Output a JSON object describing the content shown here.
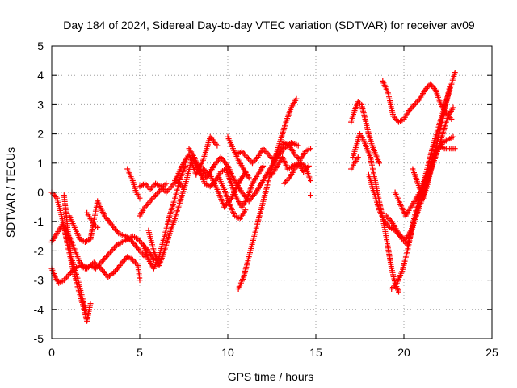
{
  "chart_data": {
    "type": "scatter",
    "title": "Day 184 of 2024, Sidereal Day-to-day VTEC variation (SDTVAR) for receiver av09",
    "xlabel": "GPS time / hours",
    "ylabel": "SDTVAR / TECUs",
    "xlim": [
      0,
      25
    ],
    "ylim": [
      -5,
      5
    ],
    "x_ticks": [
      "0",
      "5",
      "10",
      "15",
      "20",
      "25"
    ],
    "y_ticks": [
      "-5",
      "-4",
      "-3",
      "-2",
      "-1",
      "0",
      "1",
      "2",
      "3",
      "4",
      "5"
    ],
    "grid": true,
    "marker": "+",
    "color": "#ff0000",
    "tracks": [
      {
        "x": [
          0.0,
          0.3,
          0.6,
          0.9,
          1.2,
          1.5,
          1.8,
          2.0,
          2.2
        ],
        "y": [
          0.0,
          -0.2,
          -0.9,
          -1.8,
          -2.6,
          -3.3,
          -3.9,
          -4.4,
          -3.8
        ]
      },
      {
        "x": [
          0.7,
          0.8,
          0.9,
          1.0,
          1.1,
          1.3,
          1.5,
          1.7,
          1.9
        ],
        "y": [
          -0.1,
          -0.6,
          -1.2,
          -1.7,
          -2.2,
          -2.6,
          -3.0,
          -3.5,
          -4.0
        ]
      },
      {
        "x": [
          0.0,
          0.3,
          0.6,
          0.9,
          1.2,
          1.6,
          2.0,
          2.4,
          2.8,
          3.2,
          3.6,
          4.0,
          4.3,
          4.6,
          4.9,
          5.0
        ],
        "y": [
          -1.7,
          -1.4,
          -1.1,
          -1.4,
          -1.8,
          -2.4,
          -2.6,
          -2.4,
          -2.6,
          -2.9,
          -2.7,
          -2.4,
          -2.2,
          -2.3,
          -2.5,
          -3.0
        ]
      },
      {
        "x": [
          0.0,
          0.2,
          0.4,
          0.7,
          1.0,
          1.3,
          1.6,
          1.9,
          2.2,
          2.5,
          2.8,
          3.1,
          3.4,
          3.7,
          4.0,
          4.3,
          4.6,
          4.9,
          5.2,
          5.5,
          5.8
        ],
        "y": [
          -2.6,
          -2.9,
          -3.1,
          -3.0,
          -2.8,
          -2.6,
          -2.5,
          -2.6,
          -2.5,
          -2.6,
          -2.4,
          -2.2,
          -2.0,
          -1.8,
          -1.7,
          -1.6,
          -1.5,
          -1.6,
          -1.8,
          -2.0,
          -2.3
        ]
      },
      {
        "x": [
          1.0,
          1.3,
          1.6,
          1.9,
          2.2,
          2.6,
          3.0,
          3.4,
          3.8,
          4.2,
          4.6,
          5.0,
          5.3
        ],
        "y": [
          -0.8,
          -1.2,
          -1.6,
          -1.7,
          -1.6,
          -0.3,
          -0.8,
          -1.1,
          -1.4,
          -1.5,
          -1.7,
          -2.0,
          -2.2
        ]
      },
      {
        "x": [
          2.0,
          2.2,
          2.4,
          2.6
        ],
        "y": [
          -0.7,
          -0.9,
          -1.1,
          -1.2
        ]
      },
      {
        "x": [
          4.3,
          4.6,
          4.8,
          5.0
        ],
        "y": [
          0.8,
          0.4,
          0.0,
          -0.2
        ]
      },
      {
        "x": [
          5.0,
          5.3,
          5.6,
          5.9,
          6.2,
          6.5
        ],
        "y": [
          -0.8,
          -0.5,
          -0.3,
          -0.1,
          0.1,
          0.3
        ]
      },
      {
        "x": [
          5.0,
          5.3,
          5.6,
          5.9,
          6.2,
          6.5,
          6.8,
          7.1,
          7.4
        ],
        "y": [
          0.2,
          0.3,
          0.1,
          0.3,
          0.2,
          0.0,
          0.2,
          0.4,
          0.2
        ]
      },
      {
        "x": [
          5.2,
          5.5,
          5.8,
          6.1,
          6.4,
          6.7,
          7.0,
          7.3,
          7.6
        ],
        "y": [
          -1.8,
          -2.3,
          -2.6,
          -2.2,
          -1.5,
          -0.8,
          -0.2,
          0.5,
          0.9
        ]
      },
      {
        "x": [
          5.5,
          5.8,
          6.1,
          6.4,
          6.7,
          7.0,
          7.3,
          7.6,
          7.9
        ],
        "y": [
          -1.3,
          -2.0,
          -2.5,
          -2.0,
          -1.4,
          -0.9,
          -0.3,
          0.3,
          1.0
        ]
      },
      {
        "x": [
          7.0,
          7.4,
          7.8,
          8.2,
          8.6,
          9.0,
          9.4
        ],
        "y": [
          0.4,
          0.9,
          1.3,
          0.6,
          1.1,
          1.9,
          1.6
        ]
      },
      {
        "x": [
          7.8,
          8.1,
          8.4,
          8.7,
          9.0,
          9.3,
          9.6,
          9.9,
          10.2,
          10.5,
          10.8,
          11.1,
          11.4,
          11.7,
          12.0
        ],
        "y": [
          1.5,
          1.2,
          0.7,
          0.3,
          0.2,
          0.4,
          0.7,
          0.8,
          0.3,
          -0.2,
          -0.5,
          -0.2,
          0.3,
          0.6,
          0.9
        ]
      },
      {
        "x": [
          8.0,
          8.4,
          8.8,
          9.2,
          9.6,
          10.0,
          10.4,
          10.8,
          11.2,
          11.6,
          12.0,
          12.4,
          12.8,
          13.2,
          13.6,
          14.0
        ],
        "y": [
          1.2,
          0.8,
          0.5,
          0.9,
          1.2,
          0.9,
          0.4,
          0.0,
          -0.3,
          0.0,
          0.4,
          0.8,
          1.2,
          1.5,
          1.7,
          1.6
        ]
      },
      {
        "x": [
          8.6,
          9.0,
          9.4,
          9.8,
          10.2,
          10.6,
          11.0
        ],
        "y": [
          0.8,
          0.6,
          0.1,
          -0.5,
          -0.2,
          0.3,
          0.7
        ]
      },
      {
        "x": [
          9.5,
          9.8,
          10.1,
          10.4,
          10.7,
          11.0
        ],
        "y": [
          0.5,
          0.1,
          -0.4,
          -0.8,
          -0.9,
          -0.6
        ]
      },
      {
        "x": [
          10.0,
          10.3,
          10.6,
          10.9,
          11.2
        ],
        "y": [
          1.9,
          1.5,
          1.1,
          0.8,
          0.5
        ]
      },
      {
        "x": [
          10.5,
          10.8,
          11.1,
          11.4,
          11.7,
          12.0,
          12.3,
          12.6,
          12.9,
          13.2,
          13.5,
          13.8,
          14.1,
          14.4,
          14.7
        ],
        "y": [
          1.3,
          1.4,
          1.2,
          1.0,
          1.2,
          1.5,
          1.3,
          1.1,
          1.4,
          1.7,
          1.6,
          1.3,
          1.1,
          1.4,
          1.5
        ]
      },
      {
        "x": [
          10.6,
          10.9,
          11.2,
          11.5,
          11.8,
          12.1,
          12.4,
          12.7,
          13.0,
          13.3,
          13.6,
          13.9
        ],
        "y": [
          -3.3,
          -2.9,
          -2.2,
          -1.5,
          -0.8,
          -0.1,
          0.6,
          1.2,
          1.8,
          2.4,
          2.9,
          3.2
        ]
      },
      {
        "x": [
          12.5,
          12.8,
          13.1,
          13.4,
          13.7,
          14.0,
          14.3,
          14.6
        ],
        "y": [
          0.6,
          0.9,
          1.2,
          0.8,
          0.9,
          1.0,
          0.7,
          0.9
        ]
      },
      {
        "x": [
          13.2,
          13.5,
          13.8,
          14.1,
          14.4,
          14.7
        ],
        "y": [
          0.3,
          0.5,
          0.8,
          1.0,
          0.9,
          0.4
        ]
      },
      {
        "x": [
          14.7
        ],
        "y": [
          -0.1
        ]
      },
      {
        "x": [
          17.0,
          17.2,
          17.4,
          17.6,
          17.8,
          18.0,
          18.2,
          18.4,
          18.6
        ],
        "y": [
          2.4,
          2.8,
          3.1,
          3.0,
          2.5,
          2.0,
          1.6,
          1.3,
          1.0
        ]
      },
      {
        "x": [
          17.1,
          17.3,
          17.5,
          17.7,
          17.9,
          18.1,
          18.3,
          18.5,
          18.7,
          18.9,
          19.1,
          19.3,
          19.5,
          19.7
        ],
        "y": [
          1.2,
          1.6,
          2.0,
          1.8,
          1.5,
          1.2,
          0.6,
          0.0,
          -0.6,
          -1.2,
          -1.9,
          -2.6,
          -3.1,
          -3.4
        ]
      },
      {
        "x": [
          17.0,
          17.2,
          17.4
        ],
        "y": [
          0.8,
          1.0,
          1.2
        ]
      },
      {
        "x": [
          18.0,
          18.3,
          18.6,
          18.9,
          19.2,
          19.5,
          19.8,
          20.1,
          20.4,
          20.7,
          21.0,
          21.3,
          21.6,
          21.9,
          22.2,
          22.5,
          22.8
        ],
        "y": [
          0.6,
          0.0,
          -0.6,
          -1.0,
          -1.2,
          -1.3,
          -1.5,
          -1.6,
          -1.3,
          -0.8,
          -0.3,
          0.3,
          0.9,
          1.4,
          1.7,
          1.8,
          1.9
        ]
      },
      {
        "x": [
          18.8,
          19.1,
          19.4,
          19.7,
          20.0,
          20.3,
          20.6,
          20.9,
          21.2,
          21.5,
          21.8,
          22.1,
          22.4,
          22.7
        ],
        "y": [
          3.8,
          3.4,
          2.6,
          2.4,
          2.5,
          2.8,
          3.0,
          3.2,
          3.5,
          3.7,
          3.5,
          3.0,
          2.7,
          2.5
        ]
      },
      {
        "x": [
          19.0,
          19.3,
          19.6,
          19.9,
          20.2,
          20.5,
          20.8,
          21.1,
          21.4,
          21.7,
          22.0,
          22.3,
          22.6,
          22.9
        ],
        "y": [
          -0.8,
          -1.0,
          -1.3,
          -1.6,
          -1.8,
          -1.2,
          -0.5,
          0.3,
          1.0,
          1.7,
          2.3,
          2.9,
          3.5,
          4.1
        ]
      },
      {
        "x": [
          19.3,
          19.6,
          19.9,
          20.2,
          20.5,
          20.8,
          21.1,
          21.4,
          21.7,
          22.0,
          22.3,
          22.6,
          22.9
        ],
        "y": [
          -3.3,
          -3.1,
          -2.7,
          -2.0,
          -1.1,
          -0.3,
          0.2,
          0.8,
          1.3,
          1.6,
          1.5,
          1.5,
          1.5
        ]
      },
      {
        "x": [
          19.5,
          19.8,
          20.1,
          20.4,
          20.7,
          21.0,
          21.3,
          21.6,
          21.9,
          22.2,
          22.5,
          22.8
        ],
        "y": [
          0.0,
          -0.4,
          -0.8,
          -0.5,
          -0.2,
          0.1,
          0.5,
          0.9,
          1.4,
          2.0,
          2.6,
          2.9
        ]
      },
      {
        "x": [
          20.5,
          20.8,
          21.1,
          21.4,
          21.7,
          22.0,
          22.3,
          22.6
        ],
        "y": [
          0.8,
          0.3,
          -0.2,
          0.4,
          1.2,
          2.0,
          2.8,
          3.6
        ]
      }
    ]
  }
}
